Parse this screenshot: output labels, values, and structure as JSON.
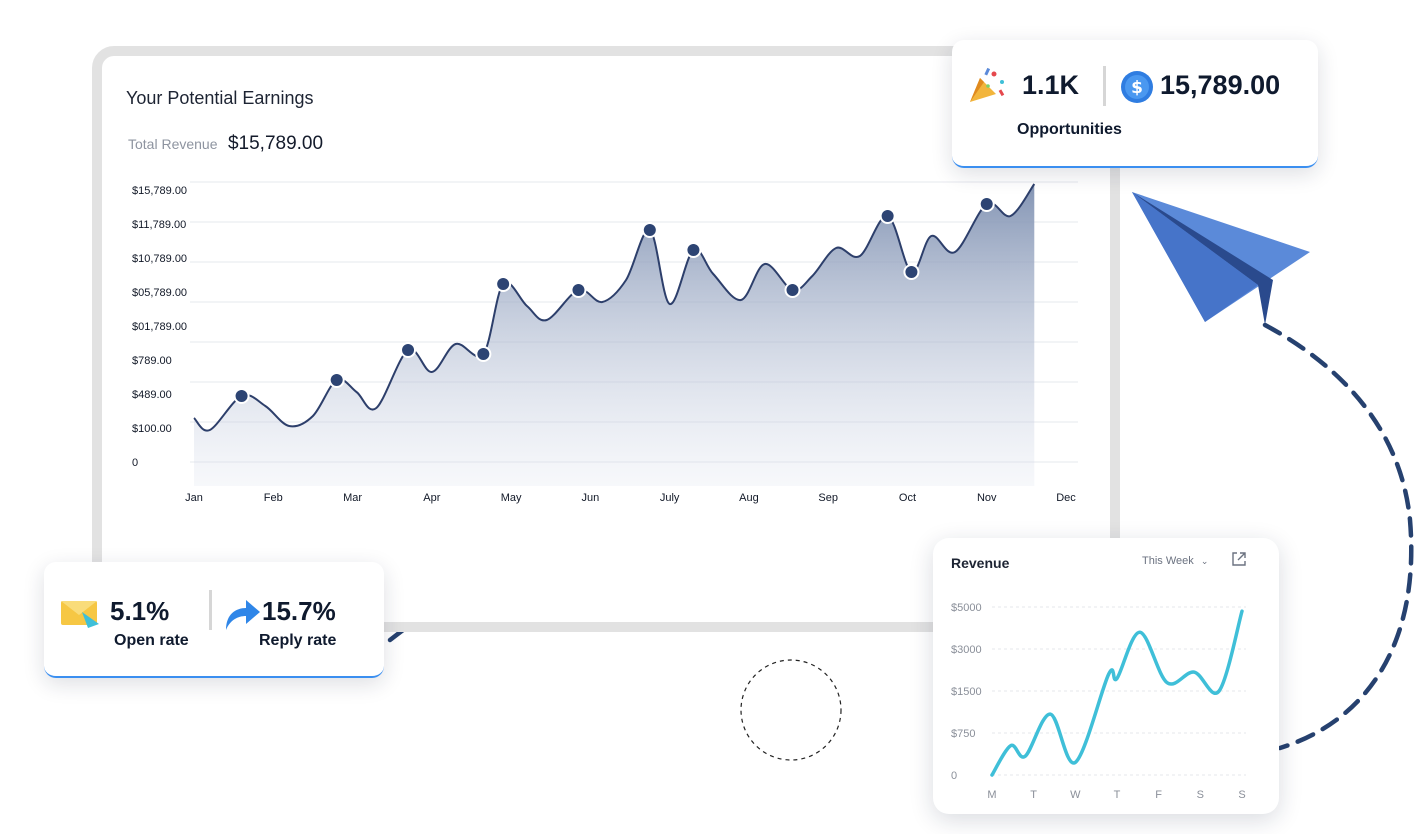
{
  "main_panel": {
    "title": "Your Potential Earnings",
    "revenue_label": "Total Revenue",
    "revenue_value": "$15,789.00"
  },
  "opportunities_card": {
    "count": "1.1K",
    "amount": "15,789.00",
    "label": "Opportunities",
    "count_icon": "party-popper-icon",
    "amount_icon": "dollar-coin-icon"
  },
  "rate_card": {
    "open_value": "5.1%",
    "open_label": "Open rate",
    "reply_value": "15.7%",
    "reply_label": "Reply rate",
    "open_icon": "envelope-icon",
    "reply_icon": "reply-arrow-icon"
  },
  "weekly_card": {
    "title": "Revenue",
    "filter": "This Week",
    "filter_icon": "chevron-down-icon",
    "expand_icon": "external-link-icon"
  },
  "colors": {
    "area_line": "#2d3f6b",
    "area_fill": "#8d9cb9",
    "weekly_line": "#3fbfd8",
    "accent": "#3b8ff0",
    "dashed_path": "#26416f",
    "paper_plane": "#5b8ad9"
  },
  "chart_data": [
    {
      "type": "area",
      "ytick_labels": [
        "0",
        "$100.00",
        "$489.00",
        "$789.00",
        "$01,789.00",
        "$05,789.00",
        "$10,789.00",
        "$11,789.00",
        "$15,789.00"
      ],
      "categories": [
        "Jan",
        "Feb",
        "Mar",
        "Apr",
        "May",
        "Jun",
        "July",
        "Aug",
        "Sep",
        "Oct",
        "Nov",
        "Dec"
      ],
      "grid": true,
      "points": [
        {
          "x": 0.0,
          "y": 1.15,
          "marker": false
        },
        {
          "x": 0.2,
          "y": 0.85,
          "marker": false
        },
        {
          "x": 0.6,
          "y": 1.7,
          "marker": true
        },
        {
          "x": 0.9,
          "y": 1.45,
          "marker": false
        },
        {
          "x": 1.2,
          "y": 0.95,
          "marker": false
        },
        {
          "x": 1.5,
          "y": 1.2,
          "marker": false
        },
        {
          "x": 1.8,
          "y": 2.1,
          "marker": true
        },
        {
          "x": 2.05,
          "y": 1.8,
          "marker": false
        },
        {
          "x": 2.3,
          "y": 1.4,
          "marker": false
        },
        {
          "x": 2.7,
          "y": 2.85,
          "marker": true
        },
        {
          "x": 3.0,
          "y": 2.3,
          "marker": false
        },
        {
          "x": 3.3,
          "y": 3.0,
          "marker": false
        },
        {
          "x": 3.65,
          "y": 2.75,
          "marker": true
        },
        {
          "x": 3.9,
          "y": 4.5,
          "marker": true
        },
        {
          "x": 4.2,
          "y": 3.95,
          "marker": false
        },
        {
          "x": 4.45,
          "y": 3.6,
          "marker": false
        },
        {
          "x": 4.85,
          "y": 4.35,
          "marker": true
        },
        {
          "x": 5.15,
          "y": 4.05,
          "marker": false
        },
        {
          "x": 5.45,
          "y": 4.6,
          "marker": false
        },
        {
          "x": 5.75,
          "y": 5.85,
          "marker": true
        },
        {
          "x": 6.0,
          "y": 4.0,
          "marker": false
        },
        {
          "x": 6.3,
          "y": 5.35,
          "marker": true
        },
        {
          "x": 6.55,
          "y": 4.75,
          "marker": false
        },
        {
          "x": 6.9,
          "y": 4.1,
          "marker": false
        },
        {
          "x": 7.2,
          "y": 5.0,
          "marker": false
        },
        {
          "x": 7.55,
          "y": 4.35,
          "marker": true
        },
        {
          "x": 7.8,
          "y": 4.7,
          "marker": false
        },
        {
          "x": 8.1,
          "y": 5.4,
          "marker": false
        },
        {
          "x": 8.4,
          "y": 5.2,
          "marker": false
        },
        {
          "x": 8.75,
          "y": 6.2,
          "marker": true
        },
        {
          "x": 9.05,
          "y": 4.8,
          "marker": true
        },
        {
          "x": 9.3,
          "y": 5.7,
          "marker": false
        },
        {
          "x": 9.6,
          "y": 5.3,
          "marker": false
        },
        {
          "x": 10.0,
          "y": 6.5,
          "marker": true
        },
        {
          "x": 10.3,
          "y": 6.2,
          "marker": false
        },
        {
          "x": 10.6,
          "y": 7.0,
          "marker": false
        }
      ]
    },
    {
      "type": "line",
      "title": "Revenue",
      "categories": [
        "M",
        "T",
        "W",
        "T",
        "F",
        "S",
        "S"
      ],
      "ytick_labels": [
        "0",
        "$750",
        "$1500",
        "$3000",
        "$5000"
      ],
      "grid": true,
      "points": [
        {
          "x": 0.0,
          "y": 0.0
        },
        {
          "x": 0.45,
          "y": 0.7
        },
        {
          "x": 0.8,
          "y": 0.45
        },
        {
          "x": 1.4,
          "y": 1.45
        },
        {
          "x": 2.0,
          "y": 0.3
        },
        {
          "x": 2.8,
          "y": 2.4
        },
        {
          "x": 3.0,
          "y": 2.3
        },
        {
          "x": 3.55,
          "y": 3.4
        },
        {
          "x": 4.2,
          "y": 2.2
        },
        {
          "x": 4.85,
          "y": 2.45
        },
        {
          "x": 5.45,
          "y": 2.0
        },
        {
          "x": 6.0,
          "y": 3.9
        }
      ]
    }
  ]
}
